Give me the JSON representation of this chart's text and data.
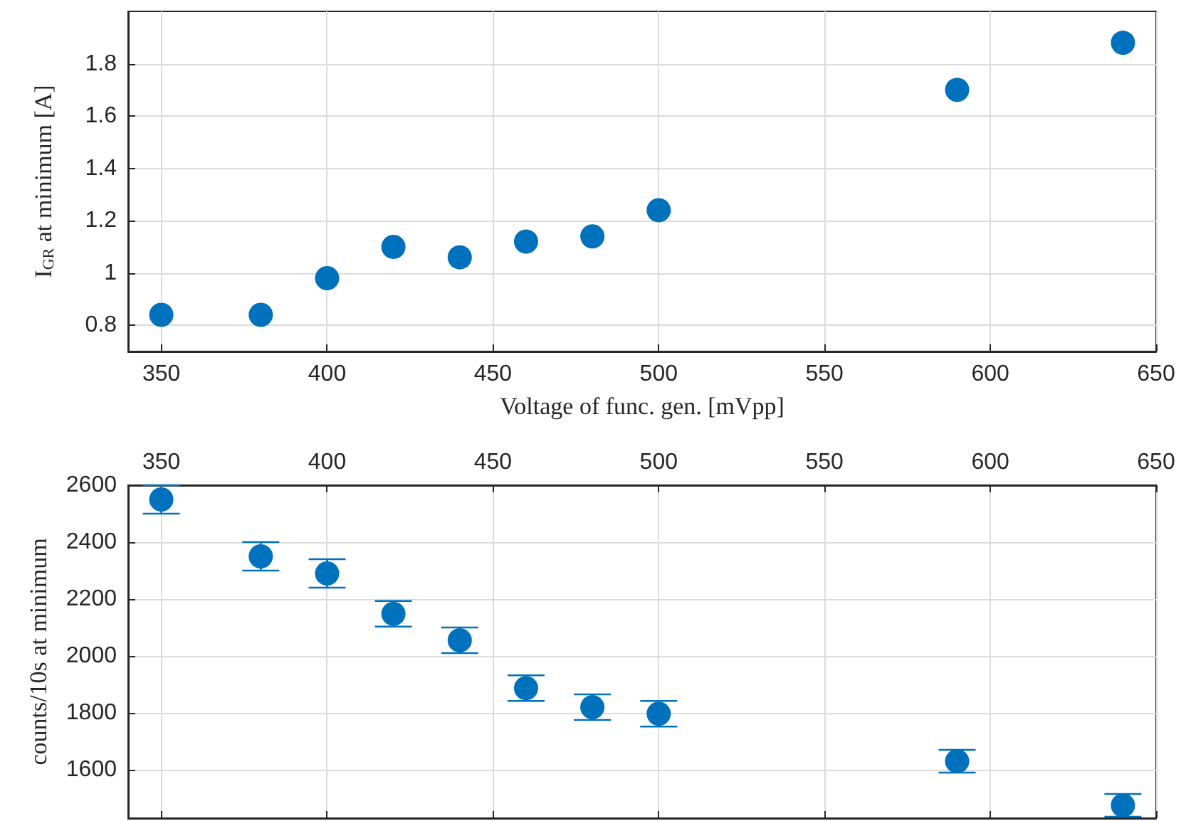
{
  "chart_data": [
    {
      "type": "scatter",
      "xlabel": "Voltage of func. gen. [mVpp]",
      "ylabel": "I$_{GR}$ at minimum [A]",
      "x": [
        350,
        380,
        400,
        420,
        440,
        460,
        480,
        500,
        590,
        640
      ],
      "series": [
        {
          "color": "#0072bd",
          "values": [
            0.84,
            0.84,
            0.98,
            1.1,
            1.06,
            1.12,
            1.14,
            1.24,
            1.7,
            1.88
          ]
        }
      ],
      "xlim": [
        340,
        650
      ],
      "xticks": [
        350,
        400,
        450,
        500,
        550,
        600,
        650
      ],
      "ylim": [
        0.7,
        2.0
      ],
      "yticks": [
        0.8,
        1,
        1.2,
        1.4,
        1.6,
        1.8
      ],
      "grid": true,
      "marker": "circle"
    },
    {
      "type": "scatter",
      "ylabel": "counts/10s at minimum",
      "x": [
        350,
        380,
        400,
        420,
        440,
        460,
        480,
        500,
        590,
        640
      ],
      "series": [
        {
          "color": "#0072bd",
          "values": [
            2550,
            2350,
            2290,
            2148,
            2055,
            1887,
            1820,
            1797,
            1630,
            1475
          ],
          "errors": [
            50,
            50,
            50,
            45,
            45,
            45,
            45,
            45,
            40,
            40
          ]
        }
      ],
      "xlim": [
        340,
        650
      ],
      "xticks": [
        350,
        400,
        450,
        500,
        550,
        600,
        650
      ],
      "x2lim": [
        340,
        650
      ],
      "x2ticks": [
        350,
        400,
        450,
        500,
        550,
        600,
        650
      ],
      "ylim": [
        1430,
        2600
      ],
      "yticks": [
        1600,
        1800,
        2000,
        2200,
        2400,
        2600
      ],
      "grid": true,
      "marker": "circle",
      "tick_labels": "y"
    }
  ]
}
